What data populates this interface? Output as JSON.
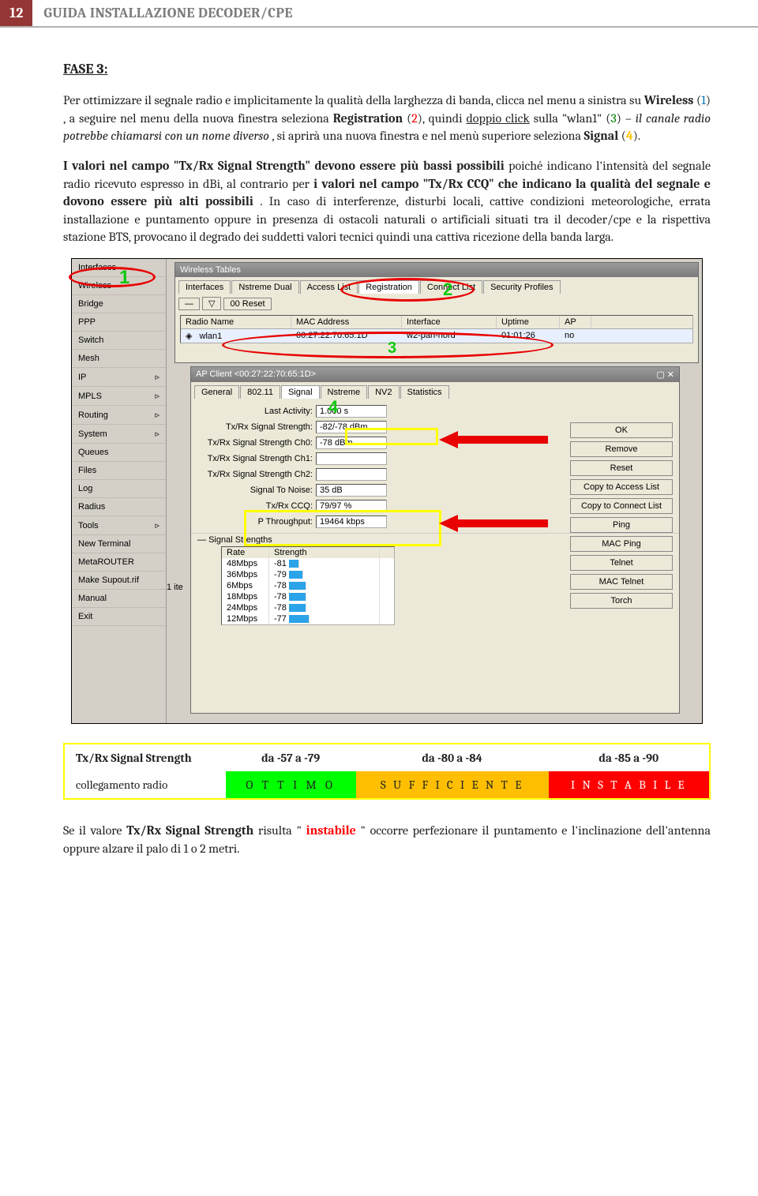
{
  "header": {
    "page_number": "12",
    "title": "GUIDA INSTALLAZIONE DECODER/CPE"
  },
  "fase_label": "FASE 3:",
  "para1_a": "Per ottimizzare il segnale radio e implicitamente la qualità della larghezza di banda, clicca nel menu a sinistra su ",
  "para1_wireless": "Wireless",
  "para1_b": " (",
  "para1_b2": ") , a seguire nel menu della nuova finestra seleziona ",
  "para1_reg": "Registration",
  "para1_c": " (",
  "para1_c2": "), quindi ",
  "para1_dbl": "doppio click",
  "para1_d": " sulla \"wlan1\" (",
  "para1_d2": ") – ",
  "para1_canale": "il canale radio potrebbe chiamarsi con un nome diverso",
  "para1_e": ",   si aprirà una nuova finestra e nel menù superiore seleziona ",
  "para1_signal": "Signal",
  "para1_f": " (",
  "para1_f2": ").",
  "n1": "1",
  "n2": "2",
  "n3": "3",
  "n4": "4",
  "para2_a": "I valori nel campo \"Tx/Rx Signal Strength\" devono essere più bassi possibili",
  "para2_b": " poiché indicano l'intensità del segnale radio ricevuto espresso in dBi, al contrario per ",
  "para2_c": "i valori nel campo \"Tx/Rx CCQ\" che indicano la qualità del segnale e dovono essere più alti possibili",
  "para2_d": ". In caso di interferenze, disturbi locali, cattive condizioni meteorologiche, errata installazione e puntamento oppure in presenza di ostacoli naturali o artificiali situati tra il decoder/cpe e la rispettiva stazione BTS, provocano il degrado dei suddetti valori tecnici quindi una cattiva ricezione della banda larga.",
  "sidebar": {
    "items": [
      "Interfaces",
      "Wireless",
      "Bridge",
      "PPP",
      "Switch",
      "Mesh",
      "IP",
      "MPLS",
      "Routing",
      "System",
      "Queues",
      "Files",
      "Log",
      "Radius",
      "Tools",
      "New Terminal",
      "MetaROUTER",
      "Make Supout.rif",
      "Manual",
      "Exit"
    ]
  },
  "win1": {
    "title": "Wireless Tables",
    "tabs": [
      "Interfaces",
      "Nstreme Dual",
      "Access List",
      "Registration",
      "Connect List",
      "Security Profiles"
    ],
    "reset": "00 Reset",
    "cols": [
      "Radio Name",
      "MAC Address",
      "Interface",
      "Uptime",
      "AP"
    ],
    "row": {
      "name": "wlan1",
      "mac": "00:27:22:70:65:1D",
      "iface": "w2-pan-nord",
      "uptime": "01:01:26",
      "ap": "no"
    },
    "count": "1 ite"
  },
  "win2": {
    "title": "AP Client <00:27:22:70:65:1D>",
    "tabs": [
      "General",
      "802.11",
      "Signal",
      "Nstreme",
      "NV2",
      "Statistics"
    ],
    "right_buttons": [
      "OK",
      "Remove",
      "Reset",
      "Copy to Access List",
      "Copy to Connect List",
      "Ping",
      "MAC Ping",
      "Telnet",
      "MAC Telnet",
      "Torch"
    ],
    "fields": {
      "last_activity": {
        "label": "Last Activity:",
        "value": "1.000 s"
      },
      "txrx": {
        "label": "Tx/Rx Signal Strength:",
        "value": "-82/-78 dBm"
      },
      "ch0": {
        "label": "Tx/Rx Signal Strength Ch0:",
        "value": "-78 dBm"
      },
      "ch1": {
        "label": "Tx/Rx Signal Strength Ch1:",
        "value": ""
      },
      "ch2": {
        "label": "Tx/Rx Signal Strength Ch2:",
        "value": ""
      },
      "stn": {
        "label": "Signal To Noise:",
        "value": "35 dB"
      },
      "ccq": {
        "label": "Tx/Rx CCQ:",
        "value": "79/97 %"
      },
      "ptp": {
        "label": "P Throughput:",
        "value": "19464 kbps"
      }
    },
    "strengths_label": "Signal Strengths",
    "str_cols": [
      "Rate",
      "Strength"
    ],
    "str_rows": [
      {
        "rate": "48Mbps",
        "str": "-81",
        "bar": 12
      },
      {
        "rate": "36Mbps",
        "str": "-79",
        "bar": 18
      },
      {
        "rate": "6Mbps",
        "str": "-78",
        "bar": 22
      },
      {
        "rate": "18Mbps",
        "str": "-78",
        "bar": 22
      },
      {
        "rate": "24Mbps",
        "str": "-78",
        "bar": 22
      },
      {
        "rate": "12Mbps",
        "str": "-77",
        "bar": 26
      }
    ]
  },
  "qtable": {
    "h1": "Tx/Rx Signal Strength",
    "h2": "da  -57 a  -79",
    "h3": "da  -80 a  -84",
    "h4": "da  -85 a  -90",
    "r1": "collegamento radio",
    "r2": "O T T I M O",
    "r3": "S U F F I C I E N T E",
    "r4": "I N S T A B I L E"
  },
  "closing_a": "Se il valore ",
  "closing_b": "Tx/Rx Signal Strength",
  "closing_c": " risulta \"",
  "closing_d": "instabile",
  "closing_e": "\" occorre perfezionare il puntamento e l'inclinazione dell'antenna oppure alzare il palo di 1 o 2 metri.",
  "colors": {
    "accent": "#943634",
    "arrow": "#e80202",
    "yellow": "#ffff00"
  }
}
